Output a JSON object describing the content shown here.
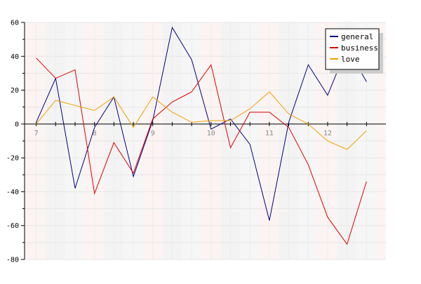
{
  "chart_data": {
    "type": "line",
    "title": "",
    "xlabel": "",
    "ylabel": "",
    "x": [
      7,
      7.333,
      7.667,
      8,
      8.333,
      8.667,
      9,
      9.333,
      9.667,
      10,
      10.333,
      10.667,
      11,
      11.333,
      11.667,
      12,
      12.333,
      12.667
    ],
    "xlim": [
      6.8,
      13.0
    ],
    "ylim": [
      -80,
      60
    ],
    "yticks": [
      60,
      40,
      20,
      0,
      -20,
      -40,
      -60,
      -80
    ],
    "xticks": [
      7,
      8,
      9,
      10,
      11,
      12
    ],
    "xtick_labels": [
      "7",
      "8",
      "9",
      "10",
      "11",
      "12"
    ],
    "grid": true,
    "legend_position": "top-right",
    "series": [
      {
        "name": "general",
        "color": "#000080",
        "values": [
          1,
          27,
          -38,
          -2,
          16,
          -31,
          2,
          57,
          38,
          -3,
          3,
          -12,
          -57,
          1,
          35,
          17,
          45,
          25
        ]
      },
      {
        "name": "business",
        "color": "#dd0000",
        "values": [
          39,
          27,
          32,
          -41,
          -11,
          -29,
          3,
          13,
          19,
          35,
          -14,
          7,
          7,
          -2,
          -24,
          -55,
          -71,
          -34
        ]
      },
      {
        "name": "love",
        "color": "#f0a000",
        "values": [
          0,
          14,
          11,
          8,
          16,
          -2,
          16,
          7,
          1,
          2,
          2,
          9,
          19,
          6,
          0,
          -10,
          -15,
          -4
        ]
      }
    ]
  }
}
